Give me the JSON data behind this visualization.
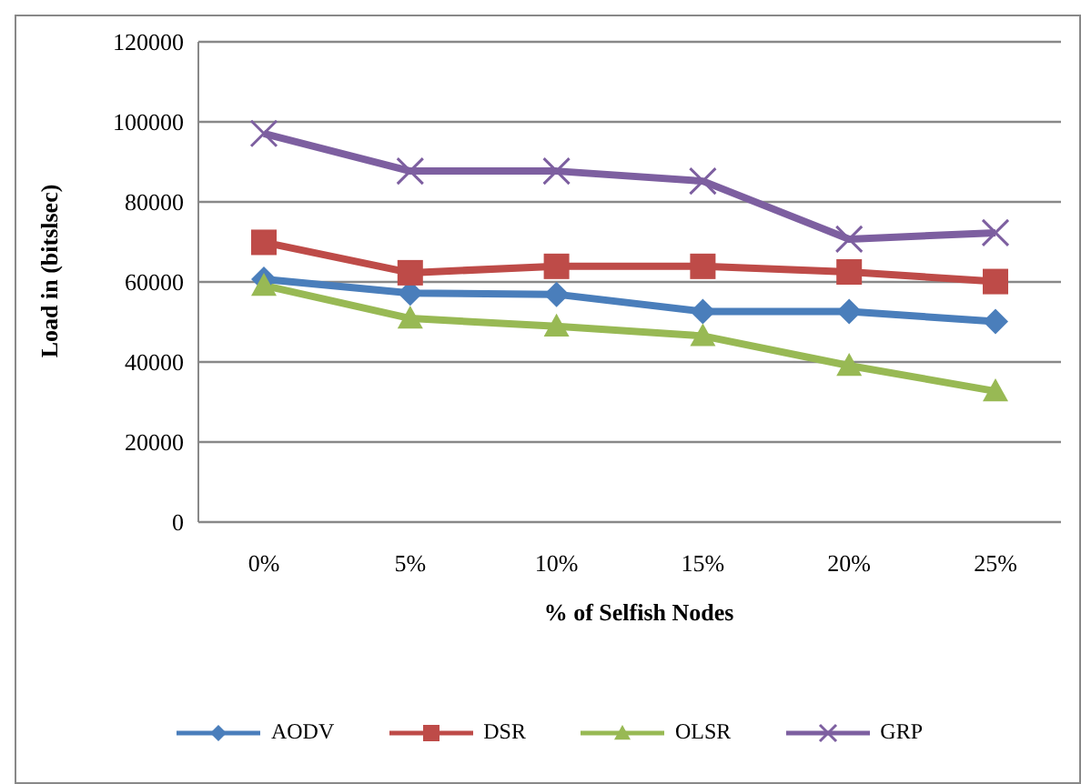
{
  "chart_data": {
    "type": "line",
    "xlabel": "% of Selfish Nodes",
    "ylabel": "Load in (bitslsec)",
    "categories": [
      "0%",
      "5%",
      "10%",
      "15%",
      "20%",
      "25%"
    ],
    "series": [
      {
        "name": "AODV",
        "color": "#4a7ebb",
        "marker": "diamond",
        "values": [
          60700,
          57200,
          56900,
          52600,
          52600,
          50100
        ]
      },
      {
        "name": "DSR",
        "color": "#be4b48",
        "marker": "square",
        "values": [
          69900,
          62300,
          63900,
          63900,
          62500,
          60100
        ]
      },
      {
        "name": "OLSR",
        "color": "#98b954",
        "marker": "triangle",
        "values": [
          59100,
          50900,
          48900,
          46500,
          39100,
          32700
        ]
      },
      {
        "name": "GRP",
        "color": "#7d5fa0",
        "marker": "cross",
        "values": [
          97100,
          87700,
          87700,
          85200,
          70700,
          72300
        ]
      }
    ],
    "ylim": [
      0,
      120000
    ],
    "yticks": [
      0,
      20000,
      40000,
      60000,
      80000,
      100000,
      120000
    ],
    "grid": "y",
    "legend": "bottom"
  }
}
